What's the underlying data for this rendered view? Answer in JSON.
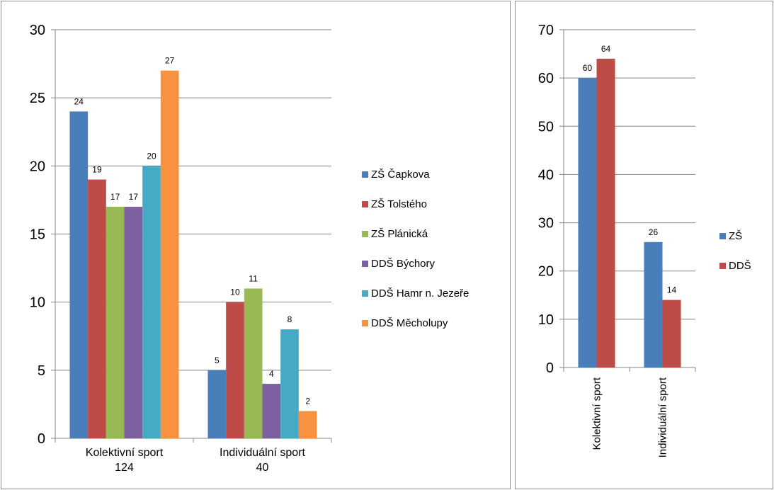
{
  "chart_data": [
    {
      "type": "bar",
      "categories": [
        "Kolektivní sport",
        "Individuální sport"
      ],
      "category_labels": [
        [
          "Kolektivní sport",
          "124"
        ],
        [
          "Individuální sport",
          "40"
        ]
      ],
      "series": [
        {
          "name": "ZŠ Čapkova",
          "values": [
            24,
            5
          ],
          "color": "#4a7ebb"
        },
        {
          "name": "ZŠ Tolstého",
          "values": [
            19,
            10
          ],
          "color": "#be4b48"
        },
        {
          "name": "ZŠ Plánická",
          "values": [
            17,
            11
          ],
          "color": "#98b954"
        },
        {
          "name": "DDŠ Býchory",
          "values": [
            17,
            4
          ],
          "color": "#7d60a0"
        },
        {
          "name": "DDŠ Hamr n. Jezeře",
          "values": [
            20,
            8
          ],
          "color": "#46aac5"
        },
        {
          "name": "DDŠ Měcholupy",
          "values": [
            27,
            2
          ],
          "color": "#f69240"
        }
      ],
      "ylim": [
        0,
        30
      ],
      "yticks": [
        0,
        5,
        10,
        15,
        20,
        25,
        30
      ],
      "grid": true,
      "legend": "right"
    },
    {
      "type": "bar",
      "categories": [
        "Kolektivní sport",
        "Individuální sport"
      ],
      "series": [
        {
          "name": "ZŠ",
          "values": [
            60,
            26
          ],
          "color": "#4a7ebb"
        },
        {
          "name": "DDŠ",
          "values": [
            64,
            14
          ],
          "color": "#be4b48"
        }
      ],
      "ylim": [
        0,
        70
      ],
      "yticks": [
        0,
        10,
        20,
        30,
        40,
        50,
        60,
        70
      ],
      "grid": true,
      "legend": "right",
      "category_label_orientation": "vertical"
    }
  ]
}
